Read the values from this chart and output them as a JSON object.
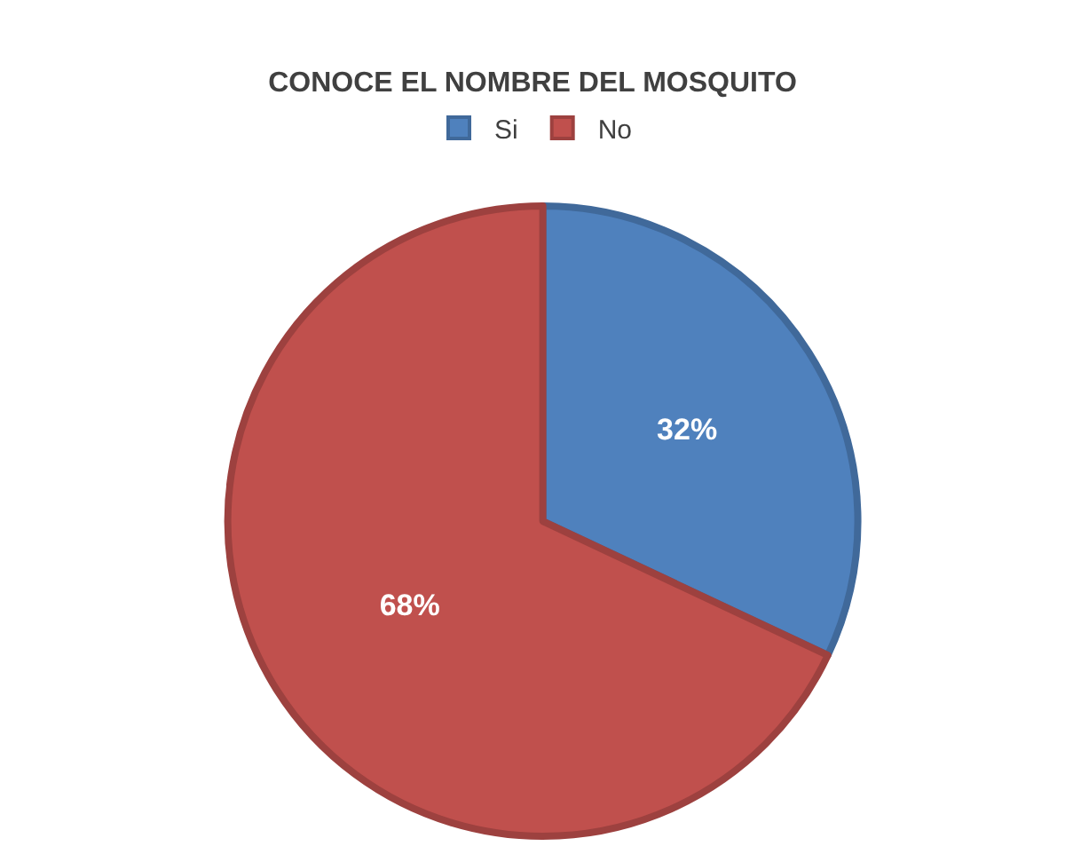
{
  "chart_data": {
    "type": "pie",
    "title": "CONOCE EL NOMBRE DEL MOSQUITO",
    "categories": [
      "Si",
      "No"
    ],
    "values": [
      32,
      68
    ],
    "colors": [
      "#4f81bd",
      "#c0504d"
    ],
    "value_labels": [
      "32%",
      "68%"
    ],
    "legend": "top"
  }
}
